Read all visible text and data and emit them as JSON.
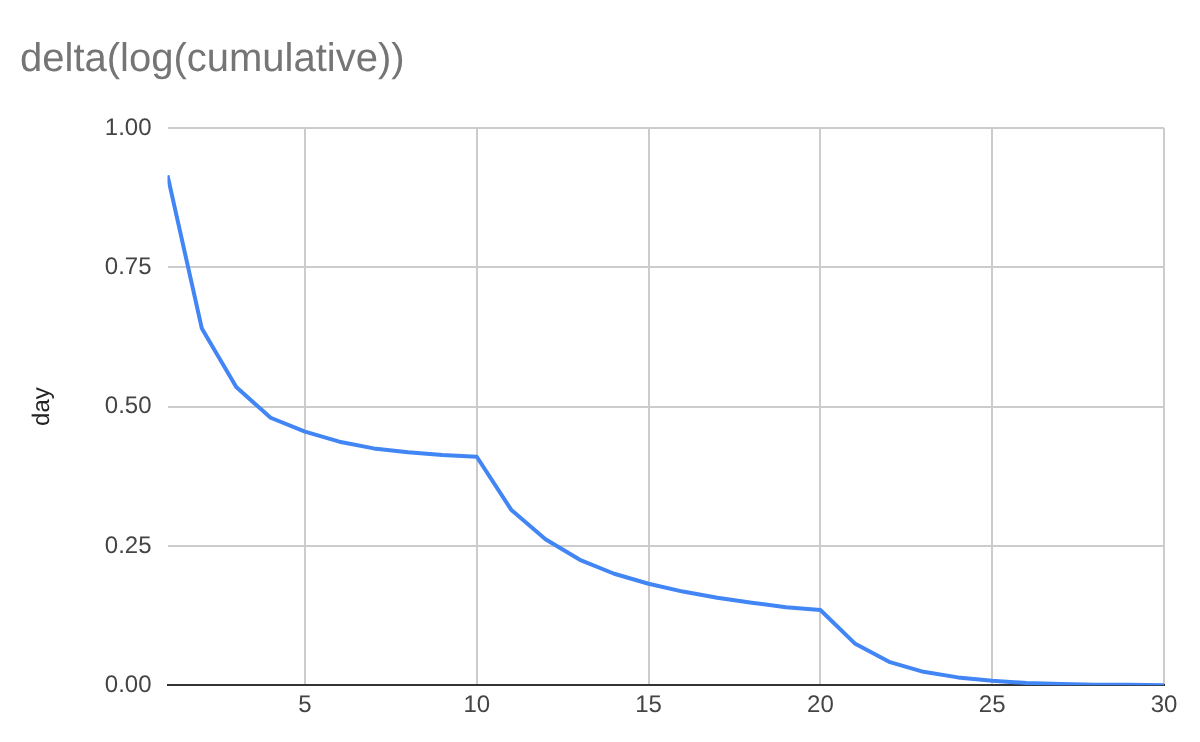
{
  "chart_data": {
    "type": "line",
    "title": "delta(log(cumulative))",
    "ylabel": "day",
    "x": [
      1,
      2,
      3,
      4,
      5,
      6,
      7,
      8,
      9,
      10,
      11,
      12,
      13,
      14,
      15,
      16,
      17,
      18,
      19,
      20,
      21,
      22,
      23,
      24,
      25,
      26,
      27,
      28,
      29,
      30
    ],
    "series": [
      {
        "color": "#4285f4",
        "values": [
          0.915,
          0.64,
          0.535,
          0.48,
          0.455,
          0.437,
          0.425,
          0.418,
          0.413,
          0.41,
          0.315,
          0.262,
          0.225,
          0.2,
          0.182,
          0.168,
          0.157,
          0.148,
          0.14,
          0.135,
          0.075,
          0.042,
          0.024,
          0.014,
          0.008,
          0.004,
          0.002,
          0.001,
          0.001,
          0
        ]
      }
    ],
    "xlim": [
      1,
      30
    ],
    "xticks": [
      5,
      10,
      15,
      20,
      25,
      30
    ],
    "ylim": [
      0,
      1
    ],
    "yticks": [
      {
        "value": 0,
        "label": "0.00"
      },
      {
        "value": 0.25,
        "label": "0.25"
      },
      {
        "value": 0.5,
        "label": "0.50"
      },
      {
        "value": 0.75,
        "label": "0.75"
      },
      {
        "value": 1,
        "label": "1.00"
      }
    ],
    "grid": true,
    "legend": false,
    "marker": "none",
    "line_style": "solid"
  }
}
